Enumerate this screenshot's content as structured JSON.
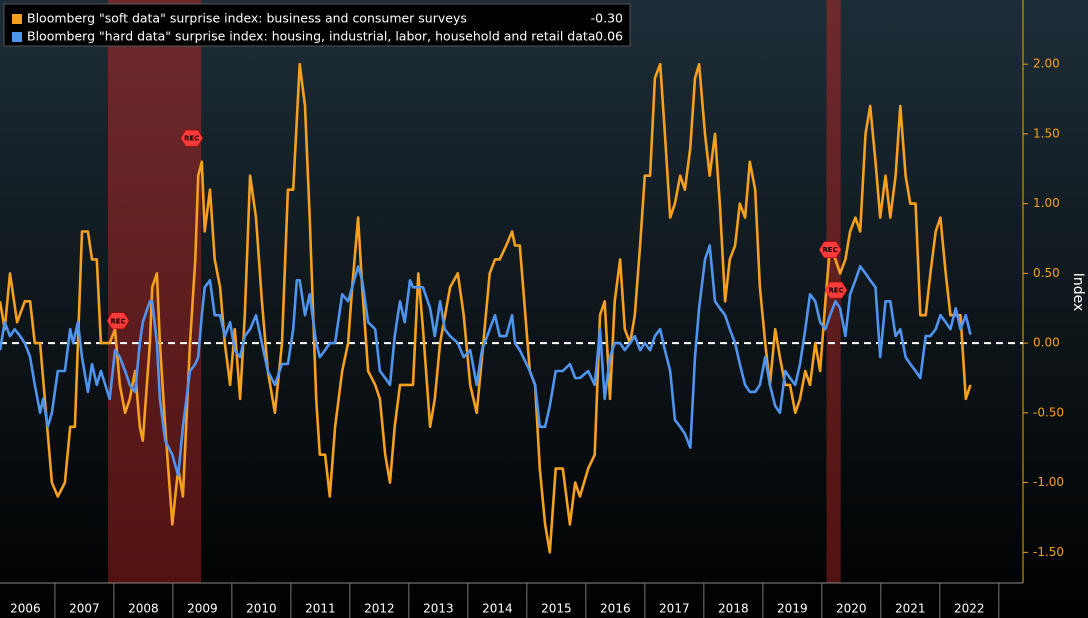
{
  "chart_data": {
    "type": "line",
    "y_label": "Index",
    "xlim": [
      2006.07,
      2023.41
    ],
    "ylim": [
      -1.72,
      2.46
    ],
    "xticks": [
      {
        "value": 2006.5,
        "label": "2006"
      },
      {
        "value": 2007.5,
        "label": "2007"
      },
      {
        "value": 2008.5,
        "label": "2008"
      },
      {
        "value": 2009.5,
        "label": "2009"
      },
      {
        "value": 2010.5,
        "label": "2010"
      },
      {
        "value": 2011.5,
        "label": "2011"
      },
      {
        "value": 2012.5,
        "label": "2012"
      },
      {
        "value": 2013.5,
        "label": "2013"
      },
      {
        "value": 2014.5,
        "label": "2014"
      },
      {
        "value": 2015.5,
        "label": "2015"
      },
      {
        "value": 2016.5,
        "label": "2016"
      },
      {
        "value": 2017.5,
        "label": "2017"
      },
      {
        "value": 2018.5,
        "label": "2018"
      },
      {
        "value": 2019.5,
        "label": "2019"
      },
      {
        "value": 2020.5,
        "label": "2020"
      },
      {
        "value": 2021.5,
        "label": "2021"
      },
      {
        "value": 2022.5,
        "label": "2022"
      }
    ],
    "yticks": [
      {
        "value": 2,
        "label": "2.00"
      },
      {
        "value": 1.5,
        "label": "1.50"
      },
      {
        "value": 1,
        "label": "1.00"
      },
      {
        "value": 0.5,
        "label": "0.50"
      },
      {
        "value": 0,
        "label": "0.00"
      },
      {
        "value": -0.5,
        "label": "-0.50"
      },
      {
        "value": -1,
        "label": "-1.00"
      },
      {
        "value": -1.5,
        "label": "-1.50"
      }
    ],
    "zero_line": 0,
    "axis_color": "#f5a01e",
    "recessions": [
      {
        "start": 2007.9,
        "end": 2009.48
      },
      {
        "start": 2020.08,
        "end": 2020.32
      }
    ],
    "rec_markers": [
      {
        "label": "REC",
        "x": 2008.07,
        "y": 0.16
      },
      {
        "label": "REC",
        "x": 2009.32,
        "y": 1.47
      },
      {
        "label": "REC",
        "x": 2020.14,
        "y": 0.67
      },
      {
        "label": "REC",
        "x": 2020.24,
        "y": 0.38
      }
    ],
    "series": [
      {
        "name": "Bloomberg \"soft data\" surprise index: business and consumer surveys",
        "last_value_label": "-0.30",
        "color": "#f5a01e",
        "x": [
          2006.07,
          2006.15,
          2006.24,
          2006.36,
          2006.49,
          2006.58,
          2006.66,
          2006.75,
          2006.95,
          2007.05,
          2007.17,
          2007.26,
          2007.34,
          2007.46,
          2007.56,
          2007.63,
          2007.71,
          2007.78,
          2007.93,
          2008.02,
          2008.1,
          2008.19,
          2008.27,
          2008.36,
          2008.44,
          2008.49,
          2008.61,
          2008.65,
          2008.73,
          2008.78,
          2008.87,
          2008.99,
          2009.09,
          2009.17,
          2009.29,
          2009.38,
          2009.43,
          2009.49,
          2009.54,
          2009.63,
          2009.71,
          2009.8,
          2009.88,
          2009.97,
          2010.05,
          2010.14,
          2010.22,
          2010.31,
          2010.41,
          2010.51,
          2010.61,
          2010.73,
          2010.85,
          2010.95,
          2011.04,
          2011.15,
          2011.24,
          2011.32,
          2011.43,
          2011.49,
          2011.58,
          2011.66,
          2011.75,
          2011.87,
          2011.97,
          2012.04,
          2012.14,
          2012.21,
          2012.31,
          2012.43,
          2012.51,
          2012.6,
          2012.68,
          2012.76,
          2012.85,
          2012.99,
          2013.07,
          2013.16,
          2013.24,
          2013.36,
          2013.44,
          2013.53,
          2013.7,
          2013.83,
          2013.93,
          2014.04,
          2014.15,
          2014.24,
          2014.37,
          2014.46,
          2014.54,
          2014.65,
          2014.75,
          2014.8,
          2014.88,
          2015.05,
          2015.14,
          2015.22,
          2015.31,
          2015.39,
          2015.49,
          2015.61,
          2015.73,
          2015.82,
          2015.9,
          2016.04,
          2016.15,
          2016.24,
          2016.32,
          2016.41,
          2016.49,
          2016.58,
          2016.66,
          2016.75,
          2016.83,
          2016.92,
          2017.0,
          2017.09,
          2017.17,
          2017.26,
          2017.34,
          2017.43,
          2017.51,
          2017.6,
          2017.68,
          2017.77,
          2017.85,
          2017.92,
          2018.02,
          2018.1,
          2018.19,
          2018.27,
          2018.36,
          2018.44,
          2018.53,
          2018.61,
          2018.7,
          2018.78,
          2018.87,
          2018.95,
          2019.04,
          2019.12,
          2019.21,
          2019.29,
          2019.38,
          2019.46,
          2019.55,
          2019.63,
          2019.72,
          2019.8,
          2019.89,
          2019.97,
          2020.06,
          2020.14,
          2020.23,
          2020.31,
          2020.4,
          2020.48,
          2020.57,
          2020.65,
          2020.74,
          2020.82,
          2020.91,
          2020.99,
          2021.08,
          2021.16,
          2021.25,
          2021.33,
          2021.42,
          2021.5,
          2021.59,
          2021.67,
          2021.76,
          2021.84,
          2021.93,
          2022.01,
          2022.1,
          2022.18,
          2022.27,
          2022.35,
          2022.44,
          2022.52
        ],
        "values": [
          0.3,
          0.1,
          0.5,
          0.15,
          0.3,
          0.3,
          0.0,
          0.0,
          -1.0,
          -1.1,
          -1.0,
          -0.6,
          -0.6,
          0.8,
          0.8,
          0.6,
          0.6,
          0.0,
          0.0,
          0.1,
          -0.3,
          -0.5,
          -0.4,
          -0.2,
          -0.6,
          -0.7,
          0.0,
          0.4,
          0.5,
          0.0,
          -0.6,
          -1.3,
          -0.9,
          -1.1,
          0.0,
          0.6,
          1.2,
          1.3,
          0.8,
          1.1,
          0.6,
          0.4,
          0.0,
          -0.3,
          0.1,
          -0.4,
          0.2,
          1.2,
          0.9,
          0.3,
          -0.2,
          -0.5,
          0.0,
          1.1,
          1.1,
          2.0,
          1.7,
          0.9,
          -0.4,
          -0.8,
          -0.8,
          -1.1,
          -0.6,
          -0.2,
          0.0,
          0.4,
          0.9,
          0.4,
          -0.2,
          -0.3,
          -0.4,
          -0.8,
          -1.0,
          -0.6,
          -0.3,
          -0.3,
          -0.3,
          0.5,
          0.1,
          -0.6,
          -0.4,
          0.0,
          0.4,
          0.5,
          0.2,
          -0.3,
          -0.5,
          -0.1,
          0.5,
          0.6,
          0.6,
          0.7,
          0.8,
          0.7,
          0.7,
          -0.2,
          -0.3,
          -0.9,
          -1.3,
          -1.5,
          -0.9,
          -0.9,
          -1.3,
          -1.0,
          -1.1,
          -0.9,
          -0.8,
          0.2,
          0.3,
          -0.4,
          0.3,
          0.6,
          0.1,
          0.0,
          0.2,
          0.7,
          1.2,
          1.2,
          1.9,
          2.0,
          1.5,
          0.9,
          1.0,
          1.2,
          1.1,
          1.4,
          1.9,
          2.0,
          1.5,
          1.2,
          1.5,
          1.0,
          0.3,
          0.6,
          0.7,
          1.0,
          0.9,
          1.3,
          1.1,
          0.4,
          0.0,
          -0.3,
          0.1,
          -0.1,
          -0.3,
          -0.3,
          -0.5,
          -0.4,
          -0.2,
          -0.3,
          0.0,
          -0.2,
          0.3,
          0.7,
          0.6,
          0.5,
          0.6,
          0.8,
          0.9,
          0.8,
          1.5,
          1.7,
          1.3,
          0.9,
          1.2,
          0.9,
          1.2,
          1.7,
          1.2,
          1.0,
          1.0,
          0.2,
          0.2,
          0.5,
          0.8,
          0.9,
          0.5,
          0.2,
          0.2,
          0.2,
          -0.4,
          -0.3
        ]
      },
      {
        "name": "Bloomberg \"hard data\" surprise index: housing, industrial, labor, household and retail data",
        "last_value_label": "0.06",
        "color": "#4f94ef",
        "x": [
          2006.07,
          2006.15,
          2006.24,
          2006.32,
          2006.41,
          2006.49,
          2006.58,
          2006.66,
          2006.75,
          2006.8,
          2006.88,
          2006.95,
          2007.05,
          2007.17,
          2007.26,
          2007.31,
          2007.39,
          2007.46,
          2007.56,
          2007.63,
          2007.71,
          2007.78,
          2007.93,
          2008.02,
          2008.1,
          2008.19,
          2008.27,
          2008.36,
          2008.44,
          2008.49,
          2008.61,
          2008.65,
          2008.73,
          2008.78,
          2008.87,
          2008.99,
          2009.09,
          2009.17,
          2009.29,
          2009.38,
          2009.43,
          2009.49,
          2009.54,
          2009.63,
          2009.71,
          2009.8,
          2009.88,
          2009.97,
          2010.05,
          2010.14,
          2010.22,
          2010.31,
          2010.41,
          2010.51,
          2010.61,
          2010.73,
          2010.85,
          2010.95,
          2011.04,
          2011.1,
          2011.15,
          2011.24,
          2011.32,
          2011.43,
          2011.49,
          2011.58,
          2011.66,
          2011.75,
          2011.87,
          2011.97,
          2012.04,
          2012.14,
          2012.21,
          2012.31,
          2012.43,
          2012.51,
          2012.6,
          2012.68,
          2012.76,
          2012.85,
          2012.93,
          2013.02,
          2013.07,
          2013.16,
          2013.24,
          2013.36,
          2013.44,
          2013.53,
          2013.61,
          2013.7,
          2013.83,
          2013.93,
          2014.04,
          2014.15,
          2014.24,
          2014.37,
          2014.46,
          2014.54,
          2014.65,
          2014.75,
          2014.8,
          2014.88,
          2015.05,
          2015.14,
          2015.22,
          2015.31,
          2015.39,
          2015.49,
          2015.61,
          2015.73,
          2015.82,
          2015.9,
          2016.04,
          2016.15,
          2016.24,
          2016.32,
          2016.41,
          2016.49,
          2016.58,
          2016.66,
          2016.75,
          2016.83,
          2016.92,
          2017.0,
          2017.09,
          2017.17,
          2017.26,
          2017.34,
          2017.43,
          2017.51,
          2017.6,
          2017.68,
          2017.77,
          2017.85,
          2017.92,
          2018.02,
          2018.1,
          2018.19,
          2018.27,
          2018.36,
          2018.44,
          2018.53,
          2018.61,
          2018.7,
          2018.78,
          2018.87,
          2018.95,
          2019.04,
          2019.12,
          2019.21,
          2019.29,
          2019.38,
          2019.46,
          2019.55,
          2019.63,
          2019.72,
          2019.8,
          2019.89,
          2019.97,
          2020.06,
          2020.14,
          2020.23,
          2020.31,
          2020.4,
          2020.48,
          2020.57,
          2020.65,
          2020.74,
          2020.82,
          2020.91,
          2020.99,
          2021.08,
          2021.16,
          2021.25,
          2021.33,
          2021.42,
          2021.5,
          2021.59,
          2021.67,
          2021.76,
          2021.84,
          2021.93,
          2022.01,
          2022.1,
          2022.18,
          2022.27,
          2022.35,
          2022.44,
          2022.52
        ],
        "values": [
          -0.05,
          0.15,
          0.05,
          0.1,
          0.05,
          0.0,
          -0.1,
          -0.3,
          -0.5,
          -0.4,
          -0.6,
          -0.5,
          -0.2,
          -0.2,
          0.1,
          0.0,
          0.15,
          -0.1,
          -0.35,
          -0.15,
          -0.3,
          -0.2,
          -0.4,
          -0.05,
          -0.1,
          -0.2,
          -0.3,
          -0.35,
          0.0,
          0.15,
          0.3,
          0.3,
          0.0,
          -0.4,
          -0.7,
          -0.8,
          -0.95,
          -0.6,
          -0.2,
          -0.15,
          -0.1,
          0.2,
          0.4,
          0.45,
          0.2,
          0.2,
          0.05,
          0.15,
          -0.05,
          -0.1,
          0.05,
          0.1,
          0.2,
          0.0,
          -0.2,
          -0.3,
          -0.15,
          -0.15,
          0.1,
          0.45,
          0.45,
          0.2,
          0.35,
          0.0,
          -0.1,
          -0.05,
          0.0,
          0.0,
          0.35,
          0.3,
          0.4,
          0.55,
          0.45,
          0.15,
          0.1,
          -0.2,
          -0.25,
          -0.3,
          0.05,
          0.3,
          0.15,
          0.45,
          0.4,
          0.4,
          0.4,
          0.25,
          0.05,
          0.3,
          0.1,
          0.05,
          0.0,
          -0.1,
          -0.05,
          -0.3,
          -0.05,
          0.1,
          0.2,
          0.05,
          0.05,
          0.2,
          0.0,
          -0.05,
          -0.2,
          -0.3,
          -0.6,
          -0.6,
          -0.45,
          -0.2,
          -0.2,
          -0.15,
          -0.25,
          -0.25,
          -0.2,
          -0.3,
          0.1,
          -0.4,
          -0.1,
          0.0,
          0.0,
          -0.05,
          0.0,
          0.05,
          -0.05,
          0.0,
          -0.05,
          0.05,
          0.1,
          -0.05,
          -0.2,
          -0.55,
          -0.6,
          -0.65,
          -0.75,
          -0.1,
          0.25,
          0.6,
          0.7,
          0.3,
          0.25,
          0.2,
          0.1,
          0.0,
          -0.15,
          -0.3,
          -0.35,
          -0.35,
          -0.3,
          -0.1,
          -0.3,
          -0.45,
          -0.5,
          -0.2,
          -0.25,
          -0.3,
          -0.15,
          0.1,
          0.35,
          0.3,
          0.15,
          0.1,
          0.2,
          0.3,
          0.25,
          0.05,
          0.35,
          0.45,
          0.55,
          0.5,
          0.45,
          0.4,
          -0.1,
          0.3,
          0.3,
          0.05,
          0.1,
          -0.1,
          -0.15,
          -0.2,
          -0.25,
          0.05,
          0.05,
          0.1,
          0.2,
          0.15,
          0.1,
          0.25,
          0.1,
          0.2,
          0.06
        ]
      }
    ]
  }
}
